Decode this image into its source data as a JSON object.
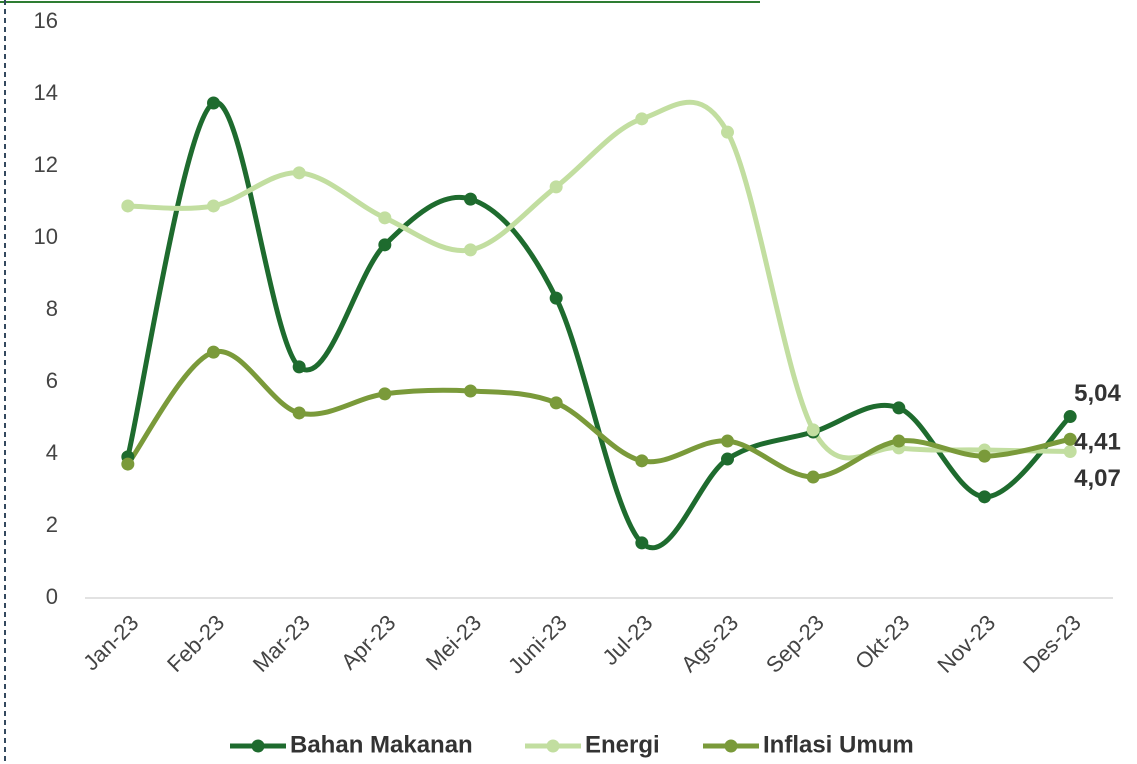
{
  "chart_data": {
    "type": "line",
    "categories": [
      "Jan-23",
      "Feb-23",
      "Mar-23",
      "Apr-23",
      "Mei-23",
      "Juni-23",
      "Jul-23",
      "Ags-23",
      "Sep-23",
      "Okt-23",
      "Nov-23",
      "Des-23"
    ],
    "series": [
      {
        "name": "Bahan Makanan",
        "color": "#1e6b2e",
        "values": [
          3.92,
          13.75,
          6.42,
          9.81,
          11.08,
          8.33,
          1.53,
          3.86,
          4.61,
          5.28,
          2.81,
          5.04
        ],
        "value_labels": [
          null,
          null,
          null,
          null,
          null,
          null,
          null,
          null,
          null,
          null,
          null,
          "5,04"
        ]
      },
      {
        "name": "Energi",
        "color": "#c2dea0",
        "values": [
          10.89,
          10.89,
          11.81,
          10.56,
          9.67,
          11.42,
          13.31,
          12.94,
          4.67,
          4.17,
          4.11,
          4.07
        ],
        "value_labels": [
          null,
          null,
          null,
          null,
          null,
          null,
          null,
          null,
          null,
          null,
          null,
          "4,07"
        ]
      },
      {
        "name": "Inflasi Umum",
        "color": "#7a9a3a",
        "values": [
          3.72,
          6.83,
          5.14,
          5.67,
          5.75,
          5.42,
          3.81,
          4.36,
          3.36,
          4.36,
          3.94,
          4.41
        ],
        "value_labels": [
          null,
          null,
          null,
          null,
          null,
          null,
          null,
          null,
          null,
          null,
          null,
          "4,41"
        ]
      }
    ],
    "ylim": [
      0,
      16
    ],
    "yticks": [
      0,
      2,
      4,
      6,
      8,
      10,
      12,
      14,
      16
    ],
    "smooth": true,
    "legend": "bottom"
  }
}
